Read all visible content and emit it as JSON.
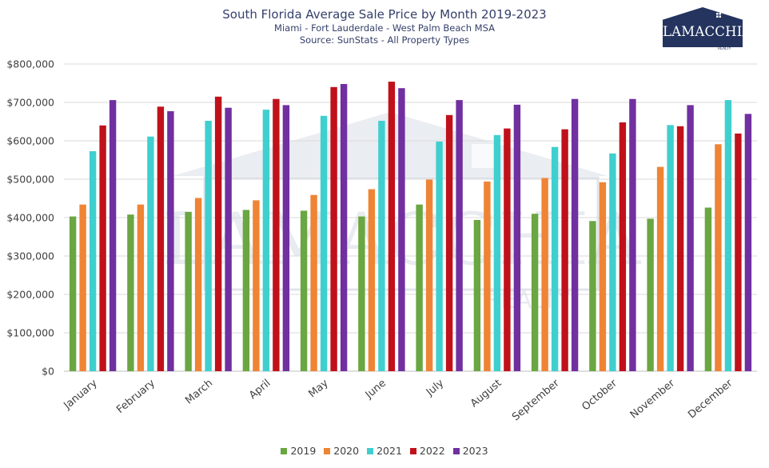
{
  "chart_data": {
    "type": "bar",
    "title": "South Florida Average Sale Price by Month 2019-2023",
    "subtitle": "Miami - Fort Lauderdale - West Palm Beach MSA",
    "source": "Source: SunStats - All Property Types",
    "categories": [
      "January",
      "February",
      "March",
      "April",
      "May",
      "June",
      "July",
      "August",
      "September",
      "October",
      "November",
      "December"
    ],
    "ylim": [
      0,
      800000
    ],
    "yticks": [
      0,
      100000,
      200000,
      300000,
      400000,
      500000,
      600000,
      700000,
      800000
    ],
    "ytick_labels": [
      "$0",
      "$100,000",
      "$200,000",
      "$300,000",
      "$400,000",
      "$500,000",
      "$600,000",
      "$700,000",
      "$800,000"
    ],
    "grid": true,
    "legend_position": "bottom",
    "series": [
      {
        "name": "2019",
        "color": "#6aa642",
        "values": [
          403000,
          408000,
          415000,
          420000,
          418000,
          403000,
          434000,
          394000,
          410000,
          391000,
          397000,
          426000
        ]
      },
      {
        "name": "2020",
        "color": "#ef8434",
        "values": [
          434000,
          434000,
          451000,
          445000,
          459000,
          474000,
          499000,
          494000,
          503000,
          492000,
          532000,
          591000
        ]
      },
      {
        "name": "2021",
        "color": "#3fcfcf",
        "values": [
          573000,
          611000,
          652000,
          681000,
          665000,
          652000,
          598000,
          615000,
          584000,
          567000,
          641000,
          706000
        ]
      },
      {
        "name": "2022",
        "color": "#c0111a",
        "values": [
          640000,
          689000,
          715000,
          709000,
          740000,
          754000,
          667000,
          632000,
          630000,
          648000,
          638000,
          619000
        ]
      },
      {
        "name": "2023",
        "color": "#7030a0",
        "values": [
          706000,
          677000,
          686000,
          693000,
          748000,
          737000,
          706000,
          694000,
          709000,
          709000,
          693000,
          670000
        ]
      }
    ]
  },
  "logo": {
    "text": "LAMACCHIA",
    "subtext": "REALTY"
  },
  "watermark": {
    "text": "LAMACCHIA",
    "subtext": "REALTY",
    "color": "#d9dee6"
  }
}
